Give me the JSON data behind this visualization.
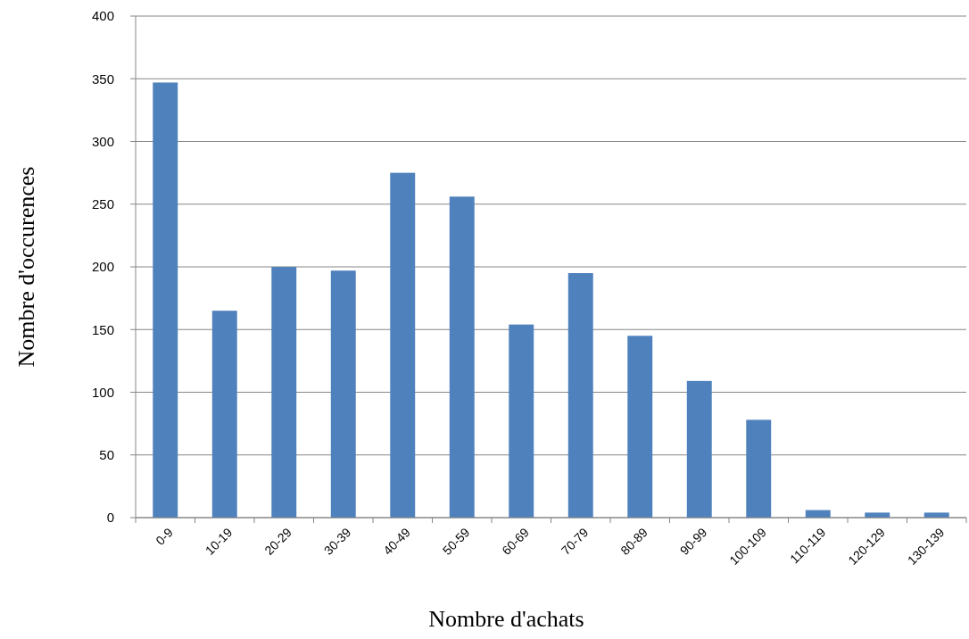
{
  "chart_data": {
    "type": "bar",
    "xlabel": "Nombre d'achats",
    "ylabel": "Nombre d'occurences",
    "categories": [
      "0-9",
      "10-19",
      "20-29",
      "30-39",
      "40-49",
      "50-59",
      "60-69",
      "70-79",
      "80-89",
      "90-99",
      "100-109",
      "110-119",
      "120-129",
      "130-139"
    ],
    "values": [
      347,
      165,
      200,
      197,
      275,
      256,
      154,
      195,
      145,
      109,
      78,
      6,
      4,
      4
    ],
    "color": "#4f81bd",
    "ylim": [
      0,
      400
    ],
    "yticks": [
      0,
      50,
      100,
      150,
      200,
      250,
      300,
      350,
      400
    ],
    "grid": "y"
  }
}
